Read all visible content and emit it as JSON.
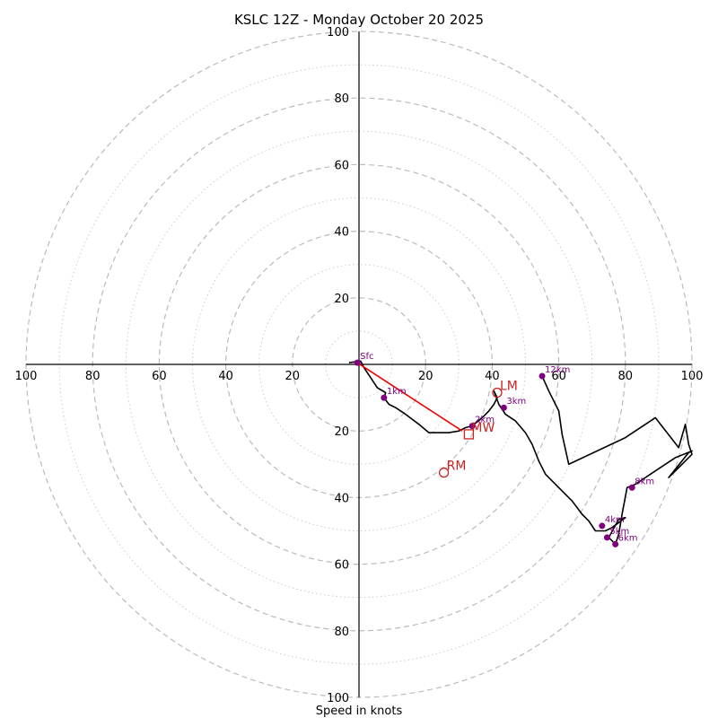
{
  "chart_data": {
    "type": "hodograph",
    "title": "KSLC 12Z - Monday October 20 2025",
    "xlabel": "Speed in knots",
    "range": [
      -100,
      100
    ],
    "ring_major_step": 20,
    "ring_minor_step": 10,
    "x_tick_labels": [
      "100",
      "80",
      "60",
      "40",
      "20",
      "20",
      "40",
      "60",
      "80",
      "100"
    ],
    "x_tick_values": [
      -100,
      -80,
      -60,
      -40,
      -20,
      20,
      40,
      60,
      80,
      100
    ],
    "y_tick_labels": [
      "100",
      "80",
      "60",
      "40",
      "20",
      "20",
      "40",
      "60",
      "80",
      "100"
    ],
    "y_tick_values": [
      100,
      80,
      60,
      40,
      20,
      -20,
      -40,
      -60,
      -80,
      -100
    ],
    "trace_color": "#000000",
    "hodograph_uv": [
      [
        -3,
        0.5
      ],
      [
        0.5,
        1
      ],
      [
        1.5,
        -1
      ],
      [
        5.5,
        -7
      ],
      [
        8,
        -8.5
      ],
      [
        7.5,
        -10
      ],
      [
        9,
        -12
      ],
      [
        11,
        -13
      ],
      [
        14,
        -15
      ],
      [
        18,
        -18
      ],
      [
        21,
        -20.5
      ],
      [
        27,
        -20.5
      ],
      [
        30,
        -20
      ],
      [
        32,
        -19
      ],
      [
        34,
        -18.5
      ],
      [
        37,
        -16
      ],
      [
        39,
        -14
      ],
      [
        40.5,
        -12
      ],
      [
        41.5,
        -10
      ],
      [
        40.5,
        -8
      ],
      [
        42,
        -12
      ],
      [
        44,
        -15
      ],
      [
        47,
        -17
      ],
      [
        50,
        -20.5
      ],
      [
        52,
        -24
      ],
      [
        54,
        -29
      ],
      [
        56,
        -33
      ],
      [
        60,
        -37
      ],
      [
        64,
        -41
      ],
      [
        67,
        -45
      ],
      [
        69,
        -47
      ],
      [
        71,
        -50
      ],
      [
        74,
        -50
      ],
      [
        76,
        -49
      ],
      [
        80,
        -46
      ],
      [
        78,
        -46.5
      ],
      [
        75,
        -52
      ],
      [
        76,
        -53
      ],
      [
        77,
        -54
      ],
      [
        78,
        -51
      ],
      [
        79,
        -45
      ],
      [
        80.5,
        -37
      ],
      [
        83,
        -36
      ],
      [
        89,
        -32
      ],
      [
        95,
        -28
      ],
      [
        100,
        -26
      ],
      [
        99,
        -26.5
      ],
      [
        93,
        -34
      ],
      [
        96,
        -31
      ],
      [
        100,
        -27
      ],
      [
        99,
        -24
      ],
      [
        98,
        -18
      ],
      [
        96,
        -25
      ],
      [
        89,
        -16
      ],
      [
        80,
        -22
      ],
      [
        63,
        -30
      ],
      [
        61,
        -21
      ],
      [
        60,
        -14
      ],
      [
        57,
        -8
      ],
      [
        55,
        -3.5
      ]
    ],
    "height_markers": [
      {
        "label": "Sfc",
        "u": -0.5,
        "v": 0.5
      },
      {
        "label": "1km",
        "u": 7.5,
        "v": -10
      },
      {
        "label": "2km",
        "u": 34,
        "v": -18.5
      },
      {
        "label": "3km",
        "u": 43.5,
        "v": -13
      },
      {
        "label": "4km",
        "u": 73,
        "v": -48.5
      },
      {
        "label": "5km",
        "u": 74.5,
        "v": -52
      },
      {
        "label": "6km",
        "u": 77,
        "v": -54
      },
      {
        "label": "8km",
        "u": 82,
        "v": -37
      },
      {
        "label": "12km",
        "u": 55,
        "v": -3.5
      }
    ],
    "shear_vector": {
      "from": [
        -0.5,
        0.5
      ],
      "to": [
        31,
        -20
      ],
      "color": "#ee0000"
    },
    "storm_motions": [
      {
        "label": "LM",
        "u": 41.5,
        "v": -8.5,
        "marker": "circle"
      },
      {
        "label": "MW",
        "u": 33,
        "v": -21,
        "marker": "square"
      },
      {
        "label": "RM",
        "u": 25.5,
        "v": -32.5,
        "marker": "circle"
      }
    ]
  }
}
